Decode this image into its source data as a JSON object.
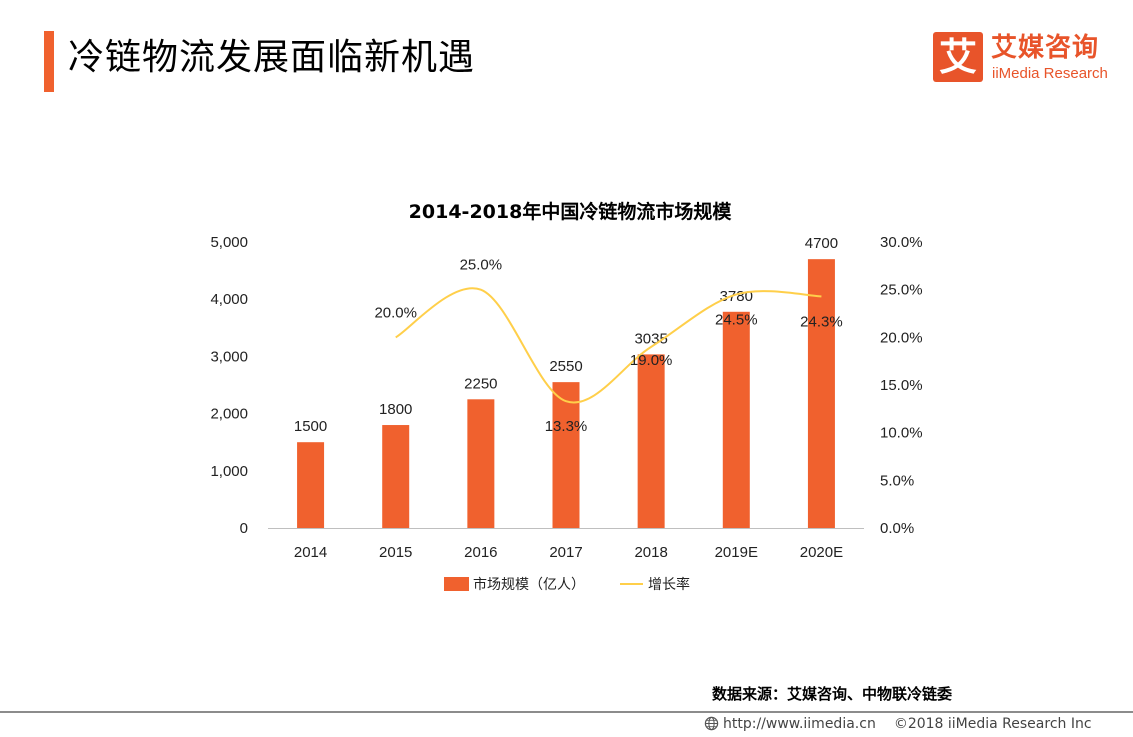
{
  "header": {
    "title": "冷链物流发展面临新机遇",
    "logo": {
      "mark": "艾",
      "name_cn": "艾媒咨询",
      "name_en": "iiMedia Research"
    }
  },
  "chart_data": {
    "type": "bar",
    "title": "2014-2018年中国冷链物流市场规模",
    "categories": [
      "2014",
      "2015",
      "2016",
      "2017",
      "2018",
      "2019E",
      "2020E"
    ],
    "series": [
      {
        "name": "市场规模（亿人）",
        "type": "bar",
        "axis": "left",
        "values": [
          1500,
          1800,
          2250,
          2550,
          3035,
          3780,
          4700
        ],
        "labels": [
          "1500",
          "1800",
          "2250",
          "2550",
          "3035",
          "3780",
          "4700"
        ]
      },
      {
        "name": "增长率",
        "type": "line",
        "axis": "right",
        "smooth": true,
        "values": [
          null,
          20.0,
          25.0,
          13.3,
          19.0,
          24.5,
          24.3
        ],
        "labels": [
          "",
          "20.0%",
          "25.0%",
          "13.3%",
          "19.0%",
          "24.5%",
          "24.3%"
        ]
      }
    ],
    "y_left": {
      "min": 0,
      "max": 5000,
      "ticks": [
        "0",
        "1,000",
        "2,000",
        "3,000",
        "4,000",
        "5,000"
      ]
    },
    "y_right": {
      "min": 0,
      "max": 30,
      "ticks": [
        "0.0%",
        "5.0%",
        "10.0%",
        "15.0%",
        "20.0%",
        "25.0%",
        "30.0%"
      ]
    },
    "xlabel": "",
    "ylabel": "",
    "grid": false,
    "legend": "bottom",
    "colors": {
      "bar": "#f0612e",
      "line": "#ffcf4a"
    }
  },
  "source": "数据来源：艾媒咨询、中物联冷链委",
  "footer": {
    "url": "http://www.iimedia.cn",
    "copyright": "©2018  iiMedia Research  Inc"
  }
}
